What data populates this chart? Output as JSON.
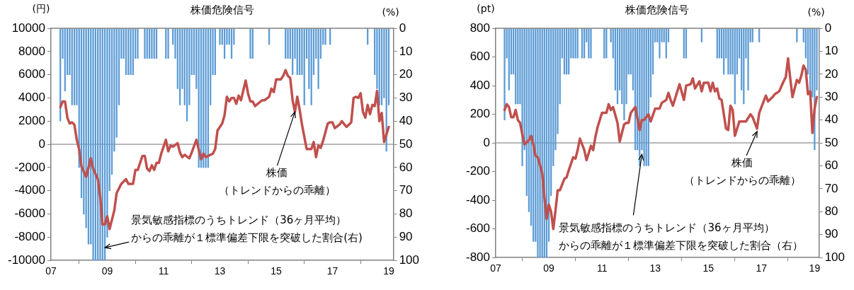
{
  "chart_data": [
    {
      "type": "line",
      "title": "株価危険信号",
      "ylabel": "(円)",
      "y2label": "(%)",
      "xlim": [
        "2007-01",
        "2019-03"
      ],
      "xticks": [
        {
          "value": "2007-01",
          "label": "07"
        },
        {
          "value": "2009-01",
          "label": "09"
        },
        {
          "value": "2011-01",
          "label": "11"
        },
        {
          "value": "2013-01",
          "label": "13"
        },
        {
          "value": "2015-01",
          "label": "15"
        },
        {
          "value": "2017-01",
          "label": "17"
        },
        {
          "value": "2019-01",
          "label": "19"
        }
      ],
      "ylim": [
        -10000,
        10000
      ],
      "yticks": [
        -10000,
        -8000,
        -6000,
        -4000,
        -2000,
        0,
        2000,
        4000,
        6000,
        8000,
        10000
      ],
      "y2lim": [
        100,
        0
      ],
      "y2ticks": [
        0,
        10,
        20,
        30,
        40,
        50,
        60,
        70,
        80,
        90,
        100
      ],
      "ref_lines": [
        {
          "axis": "y",
          "value": 0,
          "color": "#a0a0a0"
        }
      ],
      "annotations": [
        {
          "text": "株価（トレンドからの乖離）",
          "x": "2015-09",
          "y": 2800
        },
        {
          "text": "景気敏感指標のうちトレンド（36ヶ月平均）からの乖離が１標準偏差下限を突破した割合(右)",
          "x": "2008-12",
          "y": -8900
        }
      ],
      "series": [
        {
          "type": "bar",
          "axis": "y2",
          "color": "#5b9bd5",
          "x": [
            "2007-05",
            "2007-06",
            "2007-07",
            "2007-08",
            "2007-09",
            "2007-10",
            "2007-11",
            "2007-12",
            "2008-01",
            "2008-02",
            "2008-03",
            "2008-04",
            "2008-05",
            "2008-06",
            "2008-07",
            "2008-08",
            "2008-09",
            "2008-10",
            "2008-11",
            "2008-12",
            "2009-01",
            "2009-02",
            "2009-03",
            "2009-04",
            "2009-05",
            "2009-06",
            "2009-07",
            "2009-08",
            "2009-09",
            "2009-10",
            "2009-11",
            "2009-12",
            "2010-01",
            "2010-02",
            "2010-05",
            "2010-06",
            "2010-07",
            "2010-08",
            "2010-09",
            "2010-10",
            "2011-02",
            "2011-03",
            "2011-05",
            "2011-06",
            "2011-07",
            "2011-08",
            "2011-09",
            "2011-10",
            "2011-11",
            "2011-12",
            "2012-01",
            "2012-02",
            "2012-03",
            "2012-04",
            "2012-05",
            "2012-06",
            "2012-07",
            "2012-08",
            "2012-09",
            "2012-10",
            "2012-11",
            "2013-01",
            "2013-02",
            "2013-03",
            "2013-04",
            "2013-05",
            "2013-06",
            "2013-07",
            "2014-02",
            "2014-03",
            "2014-10",
            "2015-05",
            "2015-06",
            "2015-07",
            "2015-08",
            "2015-09",
            "2015-10",
            "2015-11",
            "2015-12",
            "2016-01",
            "2016-02",
            "2016-03",
            "2016-04",
            "2016-05",
            "2016-06",
            "2016-07",
            "2016-08",
            "2016-09",
            "2016-10",
            "2016-12",
            "2018-04",
            "2018-07",
            "2018-08",
            "2018-09",
            "2018-10",
            "2018-11",
            "2018-12",
            "2019-01"
          ],
          "values": [
            40,
            13,
            27,
            20,
            20,
            33,
            33,
            33,
            60,
            73,
            80,
            86,
            93,
            93,
            100,
            100,
            100,
            100,
            100,
            100,
            90,
            70,
            63,
            53,
            47,
            33,
            13,
            13,
            20,
            20,
            20,
            20,
            13,
            13,
            13,
            13,
            13,
            13,
            13,
            13,
            13,
            13,
            7,
            13,
            26,
            33,
            26,
            33,
            40,
            33,
            20,
            20,
            26,
            60,
            60,
            60,
            60,
            60,
            33,
            20,
            20,
            7,
            7,
            13,
            7,
            7,
            13,
            7,
            13,
            13,
            7,
            13,
            13,
            13,
            20,
            13,
            20,
            20,
            20,
            33,
            13,
            26,
            33,
            20,
            13,
            26,
            13,
            7,
            7,
            7,
            7,
            20,
            26,
            33,
            33,
            30,
            53,
            33
          ]
        },
        {
          "color": "#c0504d",
          "x": [
            "2007-05",
            "2007-06",
            "2007-07",
            "2007-08",
            "2007-09",
            "2007-10",
            "2007-11",
            "2007-12",
            "2008-01",
            "2008-02",
            "2008-04",
            "2008-06",
            "2008-07",
            "2008-09",
            "2008-10",
            "2008-11",
            "2008-12",
            "2009-01",
            "2009-02",
            "2009-04",
            "2009-05",
            "2009-07",
            "2009-09",
            "2009-10",
            "2009-12",
            "2010-01",
            "2010-02",
            "2010-04",
            "2010-05",
            "2010-06",
            "2010-07",
            "2010-08",
            "2010-09",
            "2010-10",
            "2010-11",
            "2010-12",
            "2011-01",
            "2011-02",
            "2011-03",
            "2011-04",
            "2011-05",
            "2011-07",
            "2011-08",
            "2011-09",
            "2011-10",
            "2011-12",
            "2012-01",
            "2012-03",
            "2012-05",
            "2012-06",
            "2012-07",
            "2012-10",
            "2012-11",
            "2012-12",
            "2013-02",
            "2013-03",
            "2013-04",
            "2013-05",
            "2013-06",
            "2013-07",
            "2013-08",
            "2013-09",
            "2013-10",
            "2013-12",
            "2014-01",
            "2014-02",
            "2014-03",
            "2014-04",
            "2014-07",
            "2014-08",
            "2014-10",
            "2014-11",
            "2014-12",
            "2015-01",
            "2015-03",
            "2015-04",
            "2015-05",
            "2015-06",
            "2015-07",
            "2015-08",
            "2015-09",
            "2015-10",
            "2015-11",
            "2015-12",
            "2016-02",
            "2016-04",
            "2016-05",
            "2016-06",
            "2016-07",
            "2016-08",
            "2016-09",
            "2016-11",
            "2016-12",
            "2017-01",
            "2017-02",
            "2017-04",
            "2017-05",
            "2017-07",
            "2017-09",
            "2017-10",
            "2017-11",
            "2017-12",
            "2018-01",
            "2018-02",
            "2018-03",
            "2018-04",
            "2018-05",
            "2018-06",
            "2018-07",
            "2018-08",
            "2018-09",
            "2018-10",
            "2018-11",
            "2019-01"
          ],
          "values": [
            3200,
            3700,
            3700,
            2300,
            1800,
            1900,
            1700,
            400,
            -400,
            -1900,
            -2800,
            -1200,
            -2100,
            -3000,
            -4500,
            -6900,
            -6900,
            -6200,
            -7300,
            -5700,
            -4200,
            -3400,
            -3000,
            -3400,
            -3400,
            -2200,
            -2200,
            -1000,
            -1000,
            -2100,
            -2300,
            -1800,
            -2200,
            -1600,
            -1600,
            -800,
            -200,
            400,
            -600,
            -100,
            -200,
            100,
            -700,
            -1100,
            -900,
            -1200,
            -700,
            400,
            -1300,
            -800,
            -1100,
            -800,
            -400,
            1200,
            1800,
            2500,
            4100,
            3700,
            4000,
            4000,
            3500,
            4200,
            3800,
            5500,
            4400,
            3700,
            3700,
            3300,
            3800,
            3800,
            4100,
            4800,
            4500,
            5600,
            5600,
            5900,
            6400,
            5900,
            5700,
            3800,
            2800,
            4100,
            3000,
            1700,
            -400,
            -400,
            200,
            -1100,
            -100,
            -300,
            300,
            1800,
            1900,
            1900,
            1400,
            1700,
            2000,
            1500,
            1900,
            4000,
            4100,
            4000,
            4400,
            2800,
            2300,
            3400,
            2600,
            3400,
            3300,
            4600,
            2000,
            2700,
            200,
            1500
          ]
        }
      ]
    },
    {
      "type": "line",
      "title": "株価危険信号",
      "ylabel": "(pt)",
      "y2label": "(%)",
      "xlim": [
        "2007-01",
        "2019-03"
      ],
      "xticks": [
        {
          "value": "2007-01",
          "label": "07"
        },
        {
          "value": "2009-01",
          "label": "09"
        },
        {
          "value": "2011-01",
          "label": "11"
        },
        {
          "value": "2013-01",
          "label": "13"
        },
        {
          "value": "2015-01",
          "label": "15"
        },
        {
          "value": "2017-01",
          "label": "17"
        },
        {
          "value": "2019-01",
          "label": "19"
        }
      ],
      "ylim": [
        -800,
        800
      ],
      "yticks": [
        -800,
        -600,
        -400,
        -200,
        0,
        200,
        400,
        600,
        800
      ],
      "y2lim": [
        100,
        0
      ],
      "y2ticks": [
        0,
        10,
        20,
        30,
        40,
        50,
        60,
        70,
        80,
        90,
        100
      ],
      "ref_lines": [
        {
          "axis": "y",
          "value": 0,
          "color": "#a0a0a0"
        }
      ],
      "annotations": [
        {
          "text": "株価（トレンドからの乖離）",
          "x": "2016-11",
          "y": 80
        },
        {
          "text": "景気敏感指標のうちトレンド（36ヶ月平均）からの乖離が１標準偏差下限を突破した割合（右）",
          "x": "2012-07",
          "y": -80
        }
      ],
      "series": [
        {
          "type": "bar",
          "axis": "y2",
          "color": "#5b9bd5",
          "x": [
            "2007-05",
            "2007-06",
            "2007-07",
            "2007-08",
            "2007-09",
            "2007-10",
            "2007-11",
            "2007-12",
            "2008-01",
            "2008-02",
            "2008-03",
            "2008-04",
            "2008-05",
            "2008-06",
            "2008-07",
            "2008-08",
            "2008-09",
            "2008-10",
            "2008-11",
            "2008-12",
            "2009-01",
            "2009-02",
            "2009-03",
            "2009-04",
            "2009-05",
            "2009-06",
            "2009-07",
            "2009-08",
            "2009-09",
            "2009-10",
            "2009-11",
            "2009-12",
            "2010-01",
            "2010-02",
            "2010-04",
            "2010-05",
            "2010-06",
            "2010-07",
            "2010-08",
            "2011-02",
            "2011-03",
            "2011-05",
            "2011-06",
            "2011-07",
            "2011-08",
            "2011-09",
            "2011-10",
            "2011-11",
            "2011-12",
            "2012-01",
            "2012-02",
            "2012-03",
            "2012-04",
            "2012-05",
            "2012-06",
            "2012-07",
            "2012-08",
            "2012-09",
            "2012-10",
            "2012-11",
            "2012-12",
            "2013-01",
            "2013-02",
            "2013-03",
            "2013-04",
            "2013-05",
            "2013-06",
            "2013-07",
            "2014-02",
            "2014-03",
            "2014-10",
            "2015-05",
            "2015-06",
            "2015-07",
            "2015-08",
            "2015-09",
            "2015-10",
            "2015-11",
            "2015-12",
            "2016-01",
            "2016-02",
            "2016-03",
            "2016-04",
            "2016-05",
            "2016-06",
            "2016-07",
            "2016-08",
            "2016-09",
            "2016-12",
            "2018-05",
            "2018-08",
            "2018-09",
            "2018-10",
            "2018-11",
            "2018-12",
            "2019-01",
            "2019-02"
          ],
          "values": [
            40,
            13,
            27,
            20,
            20,
            33,
            33,
            33,
            60,
            53,
            73,
            80,
            86,
            93,
            93,
            100,
            100,
            100,
            100,
            100,
            93,
            73,
            60,
            53,
            46,
            33,
            13,
            20,
            20,
            20,
            13,
            13,
            13,
            13,
            13,
            13,
            6,
            13,
            13,
            13,
            13,
            6,
            13,
            27,
            33,
            27,
            33,
            40,
            33,
            20,
            20,
            27,
            53,
            53,
            60,
            53,
            60,
            60,
            60,
            30,
            20,
            6,
            6,
            13,
            6,
            6,
            13,
            6,
            13,
            13,
            6,
            13,
            13,
            13,
            20,
            13,
            20,
            20,
            20,
            33,
            20,
            13,
            27,
            33,
            13,
            27,
            6,
            6,
            6,
            6,
            6,
            13,
            20,
            27,
            30,
            53,
            27
          ]
        },
        {
          "color": "#c0504d",
          "x": [
            "2007-05",
            "2007-06",
            "2007-07",
            "2007-08",
            "2007-09",
            "2007-10",
            "2007-11",
            "2007-12",
            "2008-01",
            "2008-02",
            "2008-04",
            "2008-05",
            "2008-06",
            "2008-07",
            "2008-08",
            "2008-10",
            "2008-11",
            "2008-12",
            "2009-01",
            "2009-02",
            "2009-03",
            "2009-04",
            "2009-05",
            "2009-06",
            "2009-08",
            "2009-09",
            "2009-10",
            "2009-12",
            "2010-01",
            "2010-02",
            "2010-03",
            "2010-05",
            "2010-06",
            "2010-08",
            "2010-09",
            "2010-10",
            "2010-11",
            "2011-01",
            "2011-03",
            "2011-04",
            "2011-05",
            "2011-06",
            "2011-08",
            "2011-09",
            "2011-11",
            "2011-12",
            "2012-01",
            "2012-02",
            "2012-04",
            "2012-06",
            "2012-07",
            "2012-08",
            "2012-10",
            "2012-11",
            "2013-01",
            "2013-03",
            "2013-04",
            "2013-06",
            "2013-07",
            "2013-08",
            "2013-09",
            "2013-11",
            "2013-12",
            "2014-02",
            "2014-03",
            "2014-05",
            "2014-06",
            "2014-07",
            "2014-09",
            "2014-10",
            "2014-11",
            "2015-01",
            "2015-02",
            "2015-03",
            "2015-04",
            "2015-05",
            "2015-06",
            "2015-07",
            "2015-09",
            "2015-10",
            "2015-11",
            "2015-12",
            "2016-01",
            "2016-03",
            "2016-05",
            "2016-06",
            "2016-08",
            "2016-09",
            "2016-11",
            "2016-12",
            "2017-01",
            "2017-03",
            "2017-04",
            "2017-06",
            "2017-07",
            "2017-09",
            "2017-11",
            "2017-12",
            "2018-01",
            "2018-02",
            "2018-03",
            "2018-05",
            "2018-06",
            "2018-07",
            "2018-08",
            "2018-09",
            "2018-10",
            "2018-11",
            "2018-12",
            "2019-01",
            "2019-02"
          ],
          "values": [
            230,
            270,
            250,
            180,
            180,
            230,
            160,
            140,
            60,
            -10,
            20,
            50,
            -10,
            -90,
            -100,
            -210,
            -380,
            -530,
            -430,
            -480,
            -600,
            -470,
            -330,
            -330,
            -250,
            -240,
            -190,
            -100,
            -110,
            -50,
            30,
            -50,
            -120,
            -20,
            -50,
            40,
            110,
            210,
            210,
            270,
            230,
            250,
            140,
            10,
            130,
            140,
            140,
            210,
            250,
            90,
            160,
            160,
            200,
            150,
            240,
            240,
            280,
            300,
            350,
            300,
            260,
            360,
            410,
            300,
            400,
            410,
            450,
            380,
            430,
            360,
            420,
            420,
            360,
            420,
            360,
            380,
            310,
            300,
            100,
            90,
            260,
            230,
            50,
            150,
            150,
            150,
            200,
            180,
            100,
            210,
            250,
            330,
            290,
            320,
            340,
            360,
            430,
            460,
            590,
            450,
            320,
            440,
            420,
            470,
            540,
            510,
            340,
            360,
            70,
            240,
            320
          ]
        }
      ]
    }
  ]
}
